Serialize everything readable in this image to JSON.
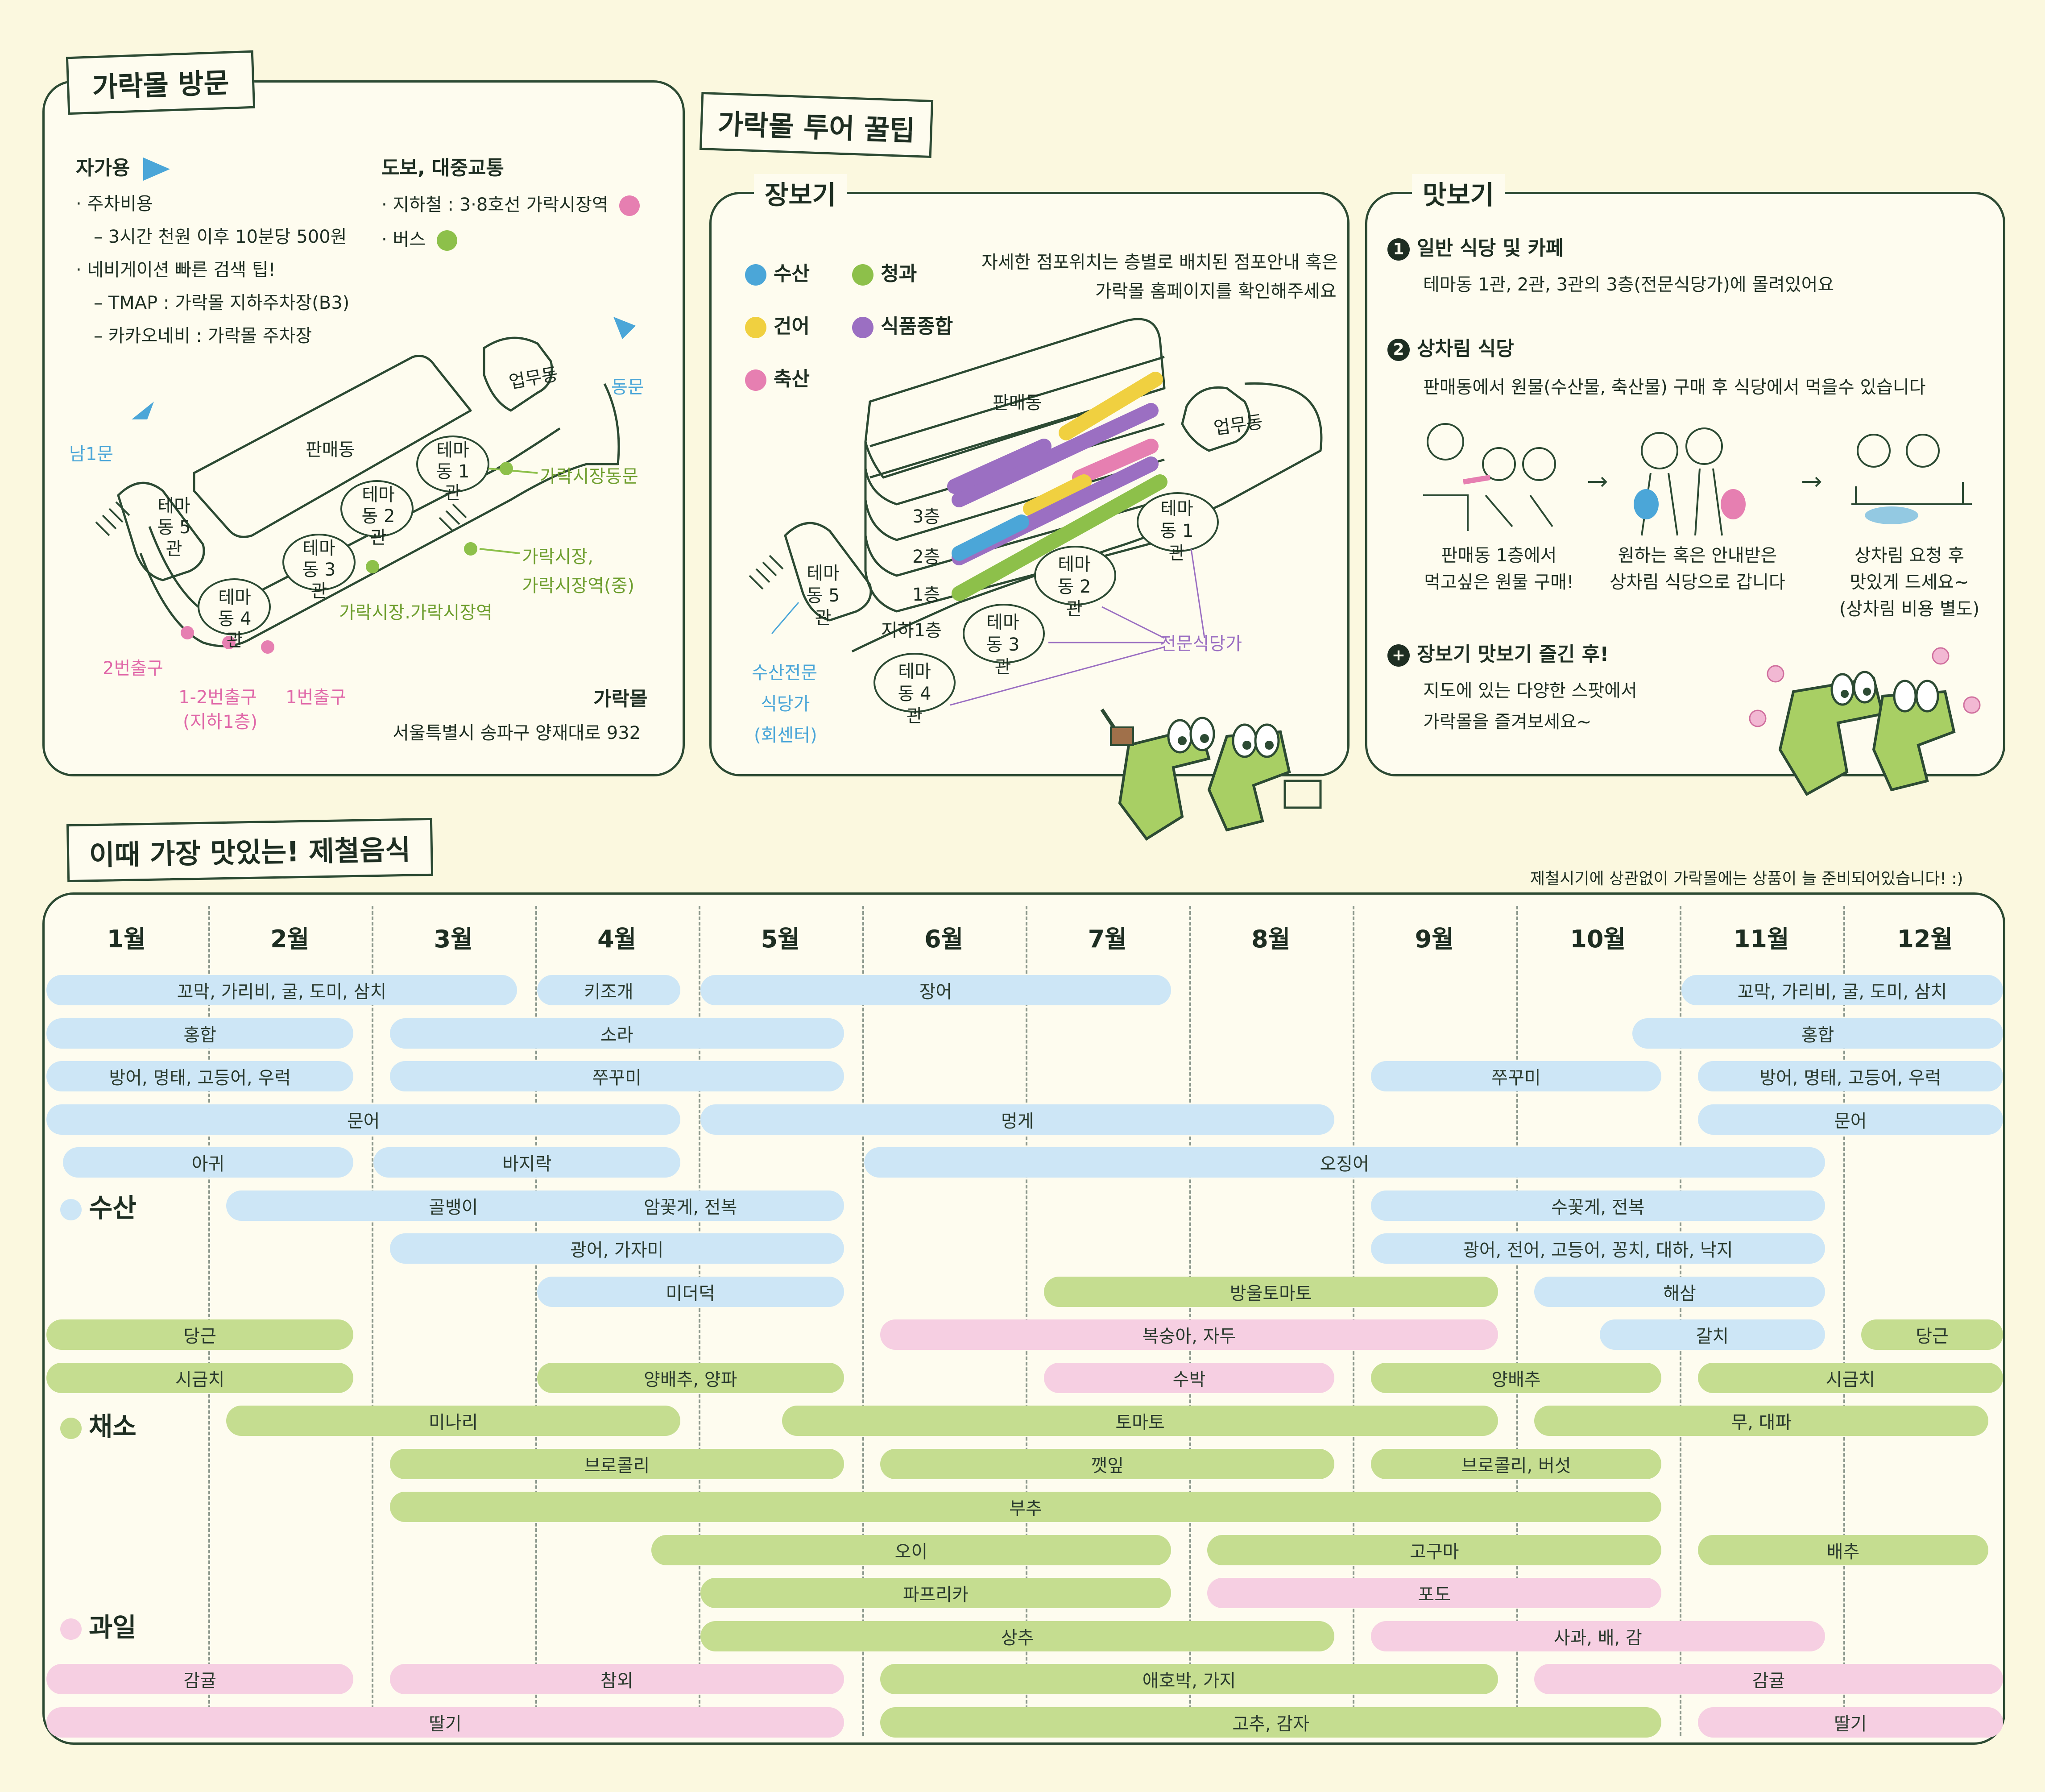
{
  "visit": {
    "title": "가락몰 방문",
    "car": {
      "heading": "자가용",
      "lines": [
        "· 주차비용",
        "– 3시간 천원 이후 10분당 500원",
        "· 네비게이션 빠른 검색 팁!",
        "– TMAP : 가락몰 지하주차장(B3)",
        "– 카카오네비 : 가락몰 주차장"
      ]
    },
    "transit": {
      "heading": "도보, 대중교통",
      "subway": "· 지하철 : 3·8호선 가락시장역",
      "bus": "· 버스"
    },
    "map": {
      "upmu": "업무동",
      "east_gate": "동문",
      "south_gate": "남1문",
      "panmae": "판매동",
      "theme1": "테마동 1관",
      "theme2": "테마동 2관",
      "theme3": "테마동 3관",
      "theme4": "테마동 4관",
      "theme5": "테마동 5관",
      "bus_east": "가락시장동문",
      "bus_station_1": "가락시장,",
      "bus_station_2": "가락시장역(중)",
      "bus_station_3": "가락시장.가락시장역",
      "exit2": "2번출구",
      "exit12_1": "1-2번출구",
      "exit12_2": "(지하1층)",
      "exit1": "1번출구"
    },
    "address_title": "가락몰",
    "address": "서울특별시 송파구 양재대로 932"
  },
  "tips": {
    "title": "가락몰 투어 꿀팁",
    "shopping": {
      "title": "장보기",
      "legend": [
        "수산",
        "청과",
        "건어",
        "식품종합",
        "축산"
      ],
      "note_1": "자세한 점포위치는 층별로 배치된 점포안내 혹은",
      "note_2": "가락몰 홈페이지를 확인해주세요",
      "panmae": "판매동",
      "upmu": "업무동",
      "floor3": "3층",
      "floor2": "2층",
      "floor1": "1층",
      "floorb1": "지하1층",
      "theme5": "테마동 5관",
      "theme1": "테마동 1관",
      "theme2": "테마동 2관",
      "theme3": "테마동 3관",
      "theme4": "테마동 4관",
      "seafood_1": "수산전문",
      "seafood_2": "식당가",
      "seafood_3": "(회센터)",
      "special": "전문식당가"
    },
    "tasting": {
      "title": "맛보기",
      "item1_title": "일반 식당 및 카페",
      "item1_text": "테마동 1관, 2관, 3관의 3층(전문식당가)에 몰려있어요",
      "item2_title": "상차림 식당",
      "item2_text": "판매동에서 원물(수산물, 축산물) 구매 후 식당에서 먹을수 있습니다",
      "step1_1": "판매동 1층에서",
      "step1_2": "먹고싶은 원물 구매!",
      "step2_1": "원하는 혹은 안내받은",
      "step2_2": "상차림 식당으로 갑니다",
      "step3_1": "상차림 요청 후",
      "step3_2": "맛있게 드세요~",
      "step3_3": "(상차림 비용 별도)",
      "item3_title": "장보기 맛보기 즐긴 후!",
      "item3_text_1": "지도에 있는 다양한 스팟에서",
      "item3_text_2": "가락몰을 즐겨보세요~",
      "n1": "1",
      "n2": "2",
      "n3": "+"
    }
  },
  "seasonal": {
    "title": "이때 가장 맛있는! 제철음식",
    "note": "제철시기에 상관없이 가락몰에는 상품이 늘 준비되어있습니다! :)",
    "months": [
      "1월",
      "2월",
      "3월",
      "4월",
      "5월",
      "6월",
      "7월",
      "8월",
      "9월",
      "10월",
      "11월",
      "12월"
    ],
    "categories": [
      {
        "name": "수산",
        "color": "#CDE6F6"
      },
      {
        "name": "채소",
        "color": "#C5DD90"
      },
      {
        "name": "과일",
        "color": "#F6CFE2"
      }
    ],
    "bars": [
      {
        "label": "꼬막, 가리비, 굴, 도미, 삼치",
        "c": "s",
        "start": 1,
        "end": 3.9,
        "row": 0
      },
      {
        "label": "키조개",
        "c": "s",
        "start": 4,
        "end": 4.9,
        "row": 0
      },
      {
        "label": "장어",
        "c": "s",
        "start": 5,
        "end": 7.9,
        "row": 0
      },
      {
        "label": "꼬막, 가리비, 굴, 도미, 삼치",
        "c": "s",
        "start": 11,
        "end": 13,
        "row": 0
      },
      {
        "label": "홍합",
        "c": "s",
        "start": 1,
        "end": 2.9,
        "row": 1
      },
      {
        "label": "소라",
        "c": "s",
        "start": 3.1,
        "end": 5.9,
        "row": 1
      },
      {
        "label": "홍합",
        "c": "s",
        "start": 10.7,
        "end": 13,
        "row": 1
      },
      {
        "label": "방어, 명태, 고등어, 우럭",
        "c": "s",
        "start": 1,
        "end": 2.9,
        "row": 2
      },
      {
        "label": "쭈꾸미",
        "c": "s",
        "start": 3.1,
        "end": 5.9,
        "row": 2
      },
      {
        "label": "쭈꾸미",
        "c": "s",
        "start": 9.1,
        "end": 10.9,
        "row": 2
      },
      {
        "label": "방어, 명태, 고등어, 우럭",
        "c": "s",
        "start": 11.1,
        "end": 13,
        "row": 2
      },
      {
        "label": "문어",
        "c": "s",
        "start": 1,
        "end": 4.9,
        "row": 3
      },
      {
        "label": "멍게",
        "c": "s",
        "start": 5,
        "end": 8.9,
        "row": 3
      },
      {
        "label": "문어",
        "c": "s",
        "start": 11.1,
        "end": 13,
        "row": 3
      },
      {
        "label": "아귀",
        "c": "s",
        "start": 1.1,
        "end": 2.9,
        "row": 4
      },
      {
        "label": "바지락",
        "c": "s",
        "start": 3,
        "end": 4.9,
        "row": 4
      },
      {
        "label": "오징어",
        "c": "s",
        "start": 6,
        "end": 11.9,
        "row": 4
      },
      {
        "label": "골뱅이",
        "c": "s",
        "start": 2.1,
        "end": 4.9,
        "row": 5
      },
      {
        "label": "암꽃게, 전복",
        "c": "s",
        "start": 4,
        "end": 5.9,
        "row": 5
      },
      {
        "label": "수꽃게, 전복",
        "c": "s",
        "start": 9.1,
        "end": 11.9,
        "row": 5
      },
      {
        "label": "광어, 가자미",
        "c": "s",
        "start": 3.1,
        "end": 5.9,
        "row": 6
      },
      {
        "label": "광어, 전어, 고등어, 꽁치, 대하, 낙지",
        "c": "s",
        "start": 9.1,
        "end": 11.9,
        "row": 6
      },
      {
        "label": "미더덕",
        "c": "s",
        "start": 4,
        "end": 5.9,
        "row": 7
      },
      {
        "label": "방울토마토",
        "c": "v",
        "start": 7.1,
        "end": 9.9,
        "row": 7
      },
      {
        "label": "해삼",
        "c": "s",
        "start": 10.1,
        "end": 11.9,
        "row": 7
      },
      {
        "label": "당근",
        "c": "v",
        "start": 1,
        "end": 2.9,
        "row": 8
      },
      {
        "label": "복숭아, 자두",
        "c": "f",
        "start": 6.1,
        "end": 9.9,
        "row": 8
      },
      {
        "label": "갈치",
        "c": "s",
        "start": 10.5,
        "end": 11.9,
        "row": 8
      },
      {
        "label": "당근",
        "c": "v",
        "start": 12.1,
        "end": 13,
        "row": 8
      },
      {
        "label": "시금치",
        "c": "v",
        "start": 1,
        "end": 2.9,
        "row": 9
      },
      {
        "label": "양배추, 양파",
        "c": "v",
        "start": 4,
        "end": 5.9,
        "row": 9
      },
      {
        "label": "수박",
        "c": "f",
        "start": 7.1,
        "end": 8.9,
        "row": 9
      },
      {
        "label": "양배추",
        "c": "v",
        "start": 9.1,
        "end": 10.9,
        "row": 9
      },
      {
        "label": "시금치",
        "c": "v",
        "start": 11.1,
        "end": 13,
        "row": 9
      },
      {
        "label": "미나리",
        "c": "v",
        "start": 2.1,
        "end": 4.9,
        "row": 10
      },
      {
        "label": "토마토",
        "c": "v",
        "start": 5.5,
        "end": 9.9,
        "row": 10
      },
      {
        "label": "무, 대파",
        "c": "v",
        "start": 10.1,
        "end": 12.9,
        "row": 10
      },
      {
        "label": "브로콜리",
        "c": "v",
        "start": 3.1,
        "end": 5.9,
        "row": 11
      },
      {
        "label": "깻잎",
        "c": "v",
        "start": 6.1,
        "end": 8.9,
        "row": 11
      },
      {
        "label": "브로콜리, 버섯",
        "c": "v",
        "start": 9.1,
        "end": 10.9,
        "row": 11
      },
      {
        "label": "부추",
        "c": "v",
        "start": 3.1,
        "end": 10.9,
        "row": 12
      },
      {
        "label": "오이",
        "c": "v",
        "start": 4.7,
        "end": 7.9,
        "row": 13
      },
      {
        "label": "고구마",
        "c": "v",
        "start": 8.1,
        "end": 10.9,
        "row": 13
      },
      {
        "label": "배추",
        "c": "v",
        "start": 11.1,
        "end": 12.9,
        "row": 13
      },
      {
        "label": "파프리카",
        "c": "v",
        "start": 5,
        "end": 7.9,
        "row": 14
      },
      {
        "label": "포도",
        "c": "f",
        "start": 8.1,
        "end": 10.9,
        "row": 14
      },
      {
        "label": "상추",
        "c": "v",
        "start": 5,
        "end": 8.9,
        "row": 15
      },
      {
        "label": "사과, 배, 감",
        "c": "f",
        "start": 9.1,
        "end": 11.9,
        "row": 15
      },
      {
        "label": "감귤",
        "c": "f",
        "start": 1,
        "end": 2.9,
        "row": 16
      },
      {
        "label": "참외",
        "c": "f",
        "start": 3.1,
        "end": 5.9,
        "row": 16
      },
      {
        "label": "애호박, 가지",
        "c": "v",
        "start": 6.1,
        "end": 9.9,
        "row": 16
      },
      {
        "label": "감귤",
        "c": "f",
        "start": 10.1,
        "end": 13,
        "row": 16
      },
      {
        "label": "딸기",
        "c": "f",
        "start": 1,
        "end": 5.9,
        "row": 17
      },
      {
        "label": "고추, 감자",
        "c": "v",
        "start": 6.1,
        "end": 10.9,
        "row": 17
      },
      {
        "label": "딸기",
        "c": "f",
        "start": 11.1,
        "end": 13,
        "row": 17
      }
    ]
  }
}
